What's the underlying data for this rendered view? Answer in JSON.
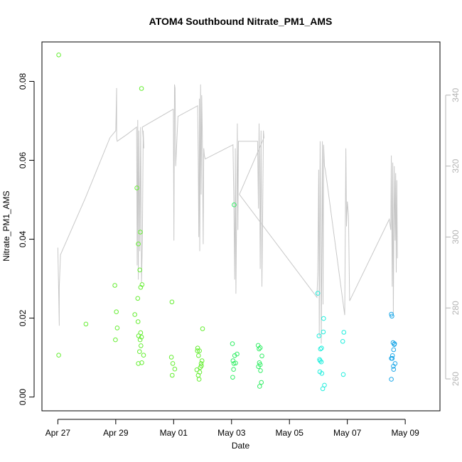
{
  "chart_data": {
    "type": "scatter",
    "title": "ATOM4 Southbound Nitrate_PM1_AMS",
    "xlabel": "Date",
    "ylabel": "Nitrate_PM1_AMS",
    "x_ticks": [
      {
        "day": 0,
        "label": "Apr 27"
      },
      {
        "day": 2,
        "label": "Apr 29"
      },
      {
        "day": 4,
        "label": "May 01"
      },
      {
        "day": 6,
        "label": "May 03"
      },
      {
        "day": 8,
        "label": "May 05"
      },
      {
        "day": 10,
        "label": "May 07"
      },
      {
        "day": 12,
        "label": "May 09"
      }
    ],
    "xlim": [
      -0.55,
      13.2
    ],
    "ylim": [
      -0.0035,
      0.09
    ],
    "y_ticks": [
      "0.00",
      "0.02",
      "0.04",
      "0.06",
      "0.08"
    ],
    "y_tick_values": [
      0,
      0.02,
      0.04,
      0.06,
      0.08
    ],
    "right_ylim": [
      251,
      355
    ],
    "right_ticks": [
      "260",
      "280",
      "300",
      "320",
      "340"
    ],
    "right_tick_values": [
      260,
      280,
      300,
      320,
      340
    ],
    "right_axis_color": "#b4b4b4",
    "line_color": "#c8c8c8",
    "series": [
      {
        "color": "#66ee33",
        "points": [
          [
            0.03,
            0.0867
          ],
          [
            0.03,
            0.0106
          ],
          [
            0.97,
            0.0185
          ],
          [
            1.97,
            0.0283
          ],
          [
            2.02,
            0.0216
          ],
          [
            2.05,
            0.0175
          ],
          [
            1.99,
            0.0145
          ],
          [
            2.66,
            0.0209
          ],
          [
            2.77,
            0.0191
          ],
          [
            2.84,
            0.0145
          ],
          [
            2.78,
            0.0085
          ],
          [
            2.79,
            0.0155
          ],
          [
            2.82,
            0.0115
          ],
          [
            2.86,
            0.0163
          ],
          [
            2.87,
            0.013
          ],
          [
            2.9,
            0.0087
          ],
          [
            2.73,
            0.053
          ],
          [
            2.78,
            0.0388
          ],
          [
            2.85,
            0.0418
          ],
          [
            2.83,
            0.0322
          ],
          [
            2.86,
            0.0278
          ],
          [
            2.91,
            0.0285
          ],
          [
            2.76,
            0.025
          ],
          [
            2.89,
            0.0782
          ],
          [
            2.89,
            0.0152
          ],
          [
            2.96,
            0.0106
          ],
          [
            3.94,
            0.0241
          ],
          [
            3.92,
            0.0101
          ],
          [
            3.97,
            0.0085
          ],
          [
            4.04,
            0.0071
          ],
          [
            3.95,
            0.0055
          ],
          [
            4.82,
            0.0117
          ],
          [
            4.83,
            0.0124
          ],
          [
            4.8,
            0.0069
          ],
          [
            4.85,
            0.0055
          ],
          [
            4.88,
            0.0045
          ],
          [
            4.92,
            0.0075
          ],
          [
            4.95,
            0.0085
          ],
          [
            4.98,
            0.0092
          ],
          [
            4.86,
            0.0105
          ],
          [
            4.89,
            0.0117
          ],
          [
            4.9,
            0.0063
          ],
          [
            4.96,
            0.0079
          ],
          [
            5.0,
            0.0173
          ]
        ]
      },
      {
        "color": "#33ee66",
        "points": [
          [
            6.03,
            0.0135
          ],
          [
            6.05,
            0.0092
          ],
          [
            6.08,
            0.0085
          ],
          [
            6.11,
            0.0105
          ],
          [
            6.14,
            0.0086
          ],
          [
            6.04,
            0.005
          ],
          [
            6.07,
            0.007
          ],
          [
            6.09,
            0.0487
          ],
          [
            6.19,
            0.0109
          ],
          [
            6.92,
            0.0131
          ],
          [
            6.95,
            0.0122
          ],
          [
            6.99,
            0.0125
          ],
          [
            6.93,
            0.0077
          ],
          [
            6.96,
            0.0087
          ],
          [
            7.0,
            0.0067
          ],
          [
            6.97,
            0.0027
          ],
          [
            7.03,
            0.0037
          ],
          [
            7.05,
            0.0104
          ],
          [
            6.99,
            0.0082
          ]
        ]
      },
      {
        "color": "#22eedd",
        "points": [
          [
            8.98,
            0.0263
          ],
          [
            9.02,
            0.0155
          ],
          [
            9.04,
            0.0095
          ],
          [
            9.06,
            0.0092
          ],
          [
            9.1,
            0.0089
          ],
          [
            9.07,
            0.0122
          ],
          [
            9.11,
            0.0124
          ],
          [
            9.05,
            0.0064
          ],
          [
            9.12,
            0.006
          ],
          [
            9.15,
            0.0021
          ],
          [
            9.21,
            0.003
          ],
          [
            9.18,
            0.0199
          ],
          [
            9.17,
            0.0165
          ],
          [
            9.88,
            0.0164
          ],
          [
            9.84,
            0.0141
          ],
          [
            9.86,
            0.0057
          ]
        ]
      },
      {
        "color": "#1ea8e8",
        "points": [
          [
            11.52,
            0.021
          ],
          [
            11.54,
            0.0205
          ],
          [
            11.58,
            0.0138
          ],
          [
            11.62,
            0.0133
          ],
          [
            11.6,
            0.012
          ],
          [
            11.56,
            0.0105
          ],
          [
            11.52,
            0.0098
          ],
          [
            11.65,
            0.0085
          ],
          [
            11.59,
            0.0078
          ],
          [
            11.55,
            0.0098
          ],
          [
            11.52,
            0.0045
          ],
          [
            11.6,
            0.007
          ],
          [
            11.63,
            0.0135
          ]
        ]
      }
    ],
    "temperature_line": [
      [
        0.0,
        297
      ],
      [
        0.05,
        275
      ],
      [
        0.05,
        286
      ],
      [
        0.09,
        295
      ],
      [
        0.95,
        311
      ],
      [
        1.8,
        328
      ],
      [
        2.0,
        330
      ],
      [
        2.03,
        342
      ],
      [
        2.03,
        328
      ],
      [
        2.05,
        327
      ],
      [
        2.4,
        329
      ],
      [
        2.72,
        331
      ],
      [
        2.74,
        292
      ],
      [
        2.76,
        333
      ],
      [
        2.78,
        288
      ],
      [
        2.8,
        330
      ],
      [
        2.83,
        296
      ],
      [
        2.86,
        331
      ],
      [
        2.89,
        287
      ],
      [
        2.92,
        299
      ],
      [
        2.95,
        330
      ],
      [
        2.97,
        325
      ],
      [
        2.92,
        331
      ],
      [
        3.98,
        336
      ],
      [
        3.99,
        336
      ],
      [
        4.01,
        299
      ],
      [
        4.03,
        343
      ],
      [
        4.05,
        342
      ],
      [
        4.07,
        320
      ],
      [
        4.15,
        334
      ],
      [
        4.83,
        337
      ],
      [
        4.85,
        322
      ],
      [
        4.87,
        300
      ],
      [
        4.89,
        339
      ],
      [
        4.9,
        296
      ],
      [
        4.93,
        343
      ],
      [
        4.95,
        312
      ],
      [
        4.97,
        340
      ],
      [
        4.99,
        330
      ],
      [
        5.02,
        298
      ],
      [
        5.04,
        325
      ],
      [
        5.06,
        323
      ],
      [
        5.09,
        322
      ],
      [
        6.05,
        326
      ],
      [
        6.08,
        310
      ],
      [
        6.11,
        288
      ],
      [
        6.13,
        325
      ],
      [
        6.15,
        284
      ],
      [
        6.18,
        310
      ],
      [
        6.2,
        332
      ],
      [
        6.22,
        302
      ],
      [
        6.24,
        327
      ],
      [
        6.9,
        327
      ],
      [
        6.93,
        308
      ],
      [
        6.95,
        332
      ],
      [
        6.97,
        318
      ],
      [
        6.99,
        291
      ],
      [
        7.02,
        330
      ],
      [
        7.05,
        286
      ],
      [
        7.08,
        310
      ],
      [
        7.1,
        330
      ],
      [
        7.12,
        328
      ],
      [
        6.27,
        312
      ],
      [
        8.95,
        283
      ],
      [
        8.98,
        290
      ],
      [
        9.01,
        319
      ],
      [
        9.03,
        272
      ],
      [
        9.06,
        327
      ],
      [
        9.1,
        270
      ],
      [
        9.14,
        327
      ],
      [
        9.16,
        281
      ],
      [
        9.18,
        326
      ],
      [
        9.21,
        320
      ],
      [
        9.24,
        319
      ],
      [
        9.91,
        278
      ],
      [
        9.95,
        325
      ],
      [
        9.96,
        316
      ],
      [
        9.97,
        303
      ],
      [
        10.0,
        310
      ],
      [
        10.04,
        306
      ],
      [
        10.08,
        282
      ],
      [
        11.45,
        305
      ],
      [
        11.5,
        302
      ],
      [
        11.52,
        323
      ],
      [
        11.55,
        286
      ],
      [
        11.57,
        321
      ],
      [
        11.59,
        278
      ],
      [
        11.62,
        320
      ],
      [
        11.65,
        299
      ],
      [
        11.67,
        318
      ],
      [
        11.69,
        290
      ],
      [
        11.71,
        316
      ],
      [
        11.73,
        294
      ]
    ]
  }
}
